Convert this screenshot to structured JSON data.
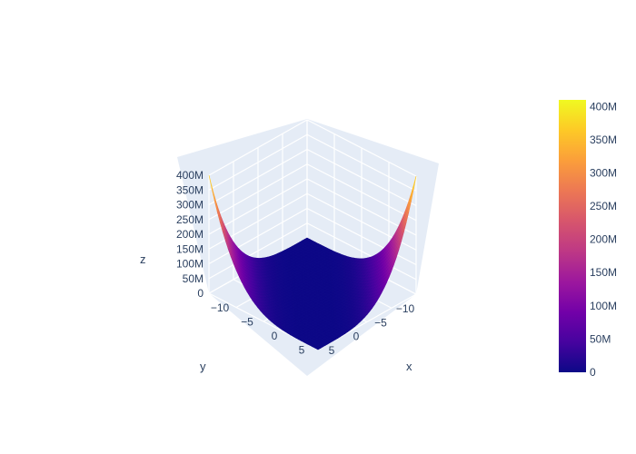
{
  "chart_data": {
    "type": "surface",
    "title": "",
    "axes": {
      "x": {
        "label": "x",
        "range": [
          -10,
          10
        ],
        "ticks": [
          -10,
          -5,
          0,
          5
        ],
        "tick_labels": [
          "−10",
          "−5",
          "0",
          "5"
        ]
      },
      "y": {
        "label": "y",
        "range": [
          -10,
          10
        ],
        "ticks": [
          -10,
          -5,
          0,
          5
        ],
        "tick_labels": [
          "−10",
          "−5",
          "0",
          "5"
        ]
      },
      "z": {
        "label": "z",
        "range": [
          0,
          400000000
        ],
        "ticks": [
          0,
          50000000,
          100000000,
          150000000,
          200000000,
          250000000,
          300000000,
          350000000,
          400000000
        ],
        "tick_labels": [
          "0",
          "50M",
          "100M",
          "150M",
          "200M",
          "250M",
          "300M",
          "350M",
          "400M"
        ]
      }
    },
    "surface": {
      "x": [
        -10,
        -7.5,
        -5,
        -2.5,
        0,
        2.5,
        5,
        7.5,
        10
      ],
      "y": [
        -10,
        -7.5,
        -5,
        -2.5,
        0,
        2.5,
        5,
        7.5,
        10
      ],
      "description_values_max": 400000000
    },
    "colorbar": {
      "min": 0,
      "max": 410000000,
      "ticks": [
        0,
        50000000,
        100000000,
        150000000,
        200000000,
        250000000,
        300000000,
        350000000,
        400000000
      ],
      "tick_labels": [
        "0",
        "50M",
        "100M",
        "150M",
        "200M",
        "250M",
        "300M",
        "350M",
        "400M"
      ],
      "colorscale": [
        "#0d0887",
        "#46039f",
        "#7201a8",
        "#9c179e",
        "#bd3786",
        "#d8576b",
        "#ed7953",
        "#fb9f3a",
        "#fdca26",
        "#f0f921"
      ]
    },
    "grid": true,
    "scene_background": "#e5ecf6"
  }
}
